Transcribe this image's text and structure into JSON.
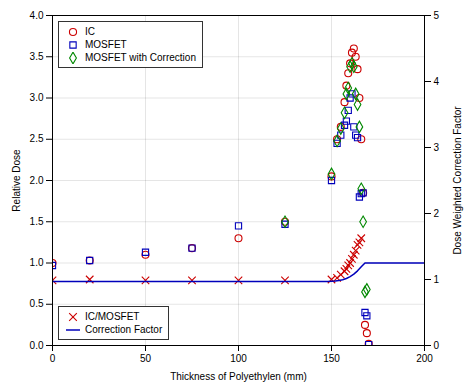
{
  "chart_data": {
    "type": "scatter",
    "xlabel": "Thickness of Polyethylen (mm)",
    "ylabel": "Relative Dose",
    "y2label": "Dose Weighted Correction Factor",
    "xlim": [
      0,
      200
    ],
    "ylim": [
      0,
      4
    ],
    "y2lim": [
      0,
      5
    ],
    "xticks": [
      0,
      50,
      100,
      150,
      200
    ],
    "yticks": [
      {
        "value": 0,
        "label": "0.0"
      },
      0.5,
      {
        "value": 1.0,
        "label": "1.0"
      },
      1.5,
      {
        "value": 2.0,
        "label": "2.0"
      },
      2.5,
      {
        "value": 3.0,
        "label": "3.0"
      },
      3.5,
      {
        "value": 4.0,
        "label": "4.0"
      }
    ],
    "y2ticks": [
      0,
      1,
      2,
      3,
      4,
      5
    ],
    "grid": true,
    "series": [
      {
        "name": "IC",
        "type": "scatter",
        "marker": "circle",
        "color": "#cc0000",
        "legend": "upper-left",
        "x": [
          0,
          20,
          50,
          75,
          100,
          125,
          150,
          153,
          155,
          157,
          158,
          159,
          160,
          161,
          162,
          163,
          164,
          165,
          166,
          167,
          168,
          169,
          170
        ],
        "values": [
          1.0,
          1.03,
          1.1,
          1.18,
          1.3,
          1.5,
          2.05,
          2.5,
          2.65,
          2.95,
          3.15,
          3.3,
          3.42,
          3.55,
          3.6,
          3.5,
          3.35,
          3.0,
          2.5,
          1.85,
          0.25,
          0.15,
          0.02
        ]
      },
      {
        "name": "MOSFET",
        "type": "scatter",
        "marker": "square",
        "color": "#0000bb",
        "legend": "upper-left",
        "x": [
          0,
          20,
          50,
          75,
          100,
          125,
          150,
          153,
          155,
          157,
          158,
          159,
          160,
          161,
          162,
          163,
          164,
          165,
          166,
          167,
          168,
          169,
          170
        ],
        "values": [
          0.97,
          1.03,
          1.13,
          1.18,
          1.45,
          1.47,
          2.0,
          2.45,
          2.55,
          2.67,
          2.72,
          2.85,
          3.0,
          3.05,
          2.65,
          2.55,
          2.52,
          1.8,
          1.84,
          1.85,
          0.4,
          0.36,
          0.01
        ]
      },
      {
        "name": "MOSFET with Correction",
        "type": "scatter",
        "marker": "diamond",
        "color": "#008800",
        "legend": "upper-left",
        "x": [
          125,
          150,
          153,
          155,
          157,
          158,
          159,
          160,
          161,
          162,
          163,
          164,
          165,
          166,
          167,
          168,
          169
        ],
        "values": [
          1.5,
          2.08,
          2.48,
          2.63,
          2.82,
          3.05,
          3.12,
          3.38,
          3.42,
          3.38,
          3.05,
          2.92,
          2.65,
          1.9,
          1.5,
          0.65,
          0.68
        ]
      },
      {
        "name": "IC/MOSFET",
        "type": "scatter",
        "marker": "x",
        "color": "#cc0000",
        "legend": "lower-left",
        "x": [
          0,
          20,
          50,
          75,
          100,
          125,
          150,
          153,
          155,
          157,
          158,
          159,
          160,
          161,
          162,
          163,
          164,
          165,
          166
        ],
        "values": [
          0.79,
          0.8,
          0.79,
          0.79,
          0.79,
          0.79,
          0.8,
          0.82,
          0.86,
          0.9,
          0.93,
          0.97,
          1.0,
          1.05,
          1.1,
          1.15,
          1.22,
          1.25,
          1.3
        ]
      },
      {
        "name": "Correction Factor",
        "type": "line",
        "line_style": "solid",
        "color": "#0000bb",
        "legend": "lower-left",
        "x": [
          0,
          50,
          100,
          125,
          148,
          150,
          152,
          154,
          156,
          158,
          160,
          162,
          164,
          166,
          168,
          200
        ],
        "values": [
          0.775,
          0.775,
          0.775,
          0.775,
          0.775,
          0.778,
          0.782,
          0.788,
          0.797,
          0.812,
          0.835,
          0.865,
          0.905,
          0.955,
          1.0,
          1.0
        ]
      }
    ]
  }
}
